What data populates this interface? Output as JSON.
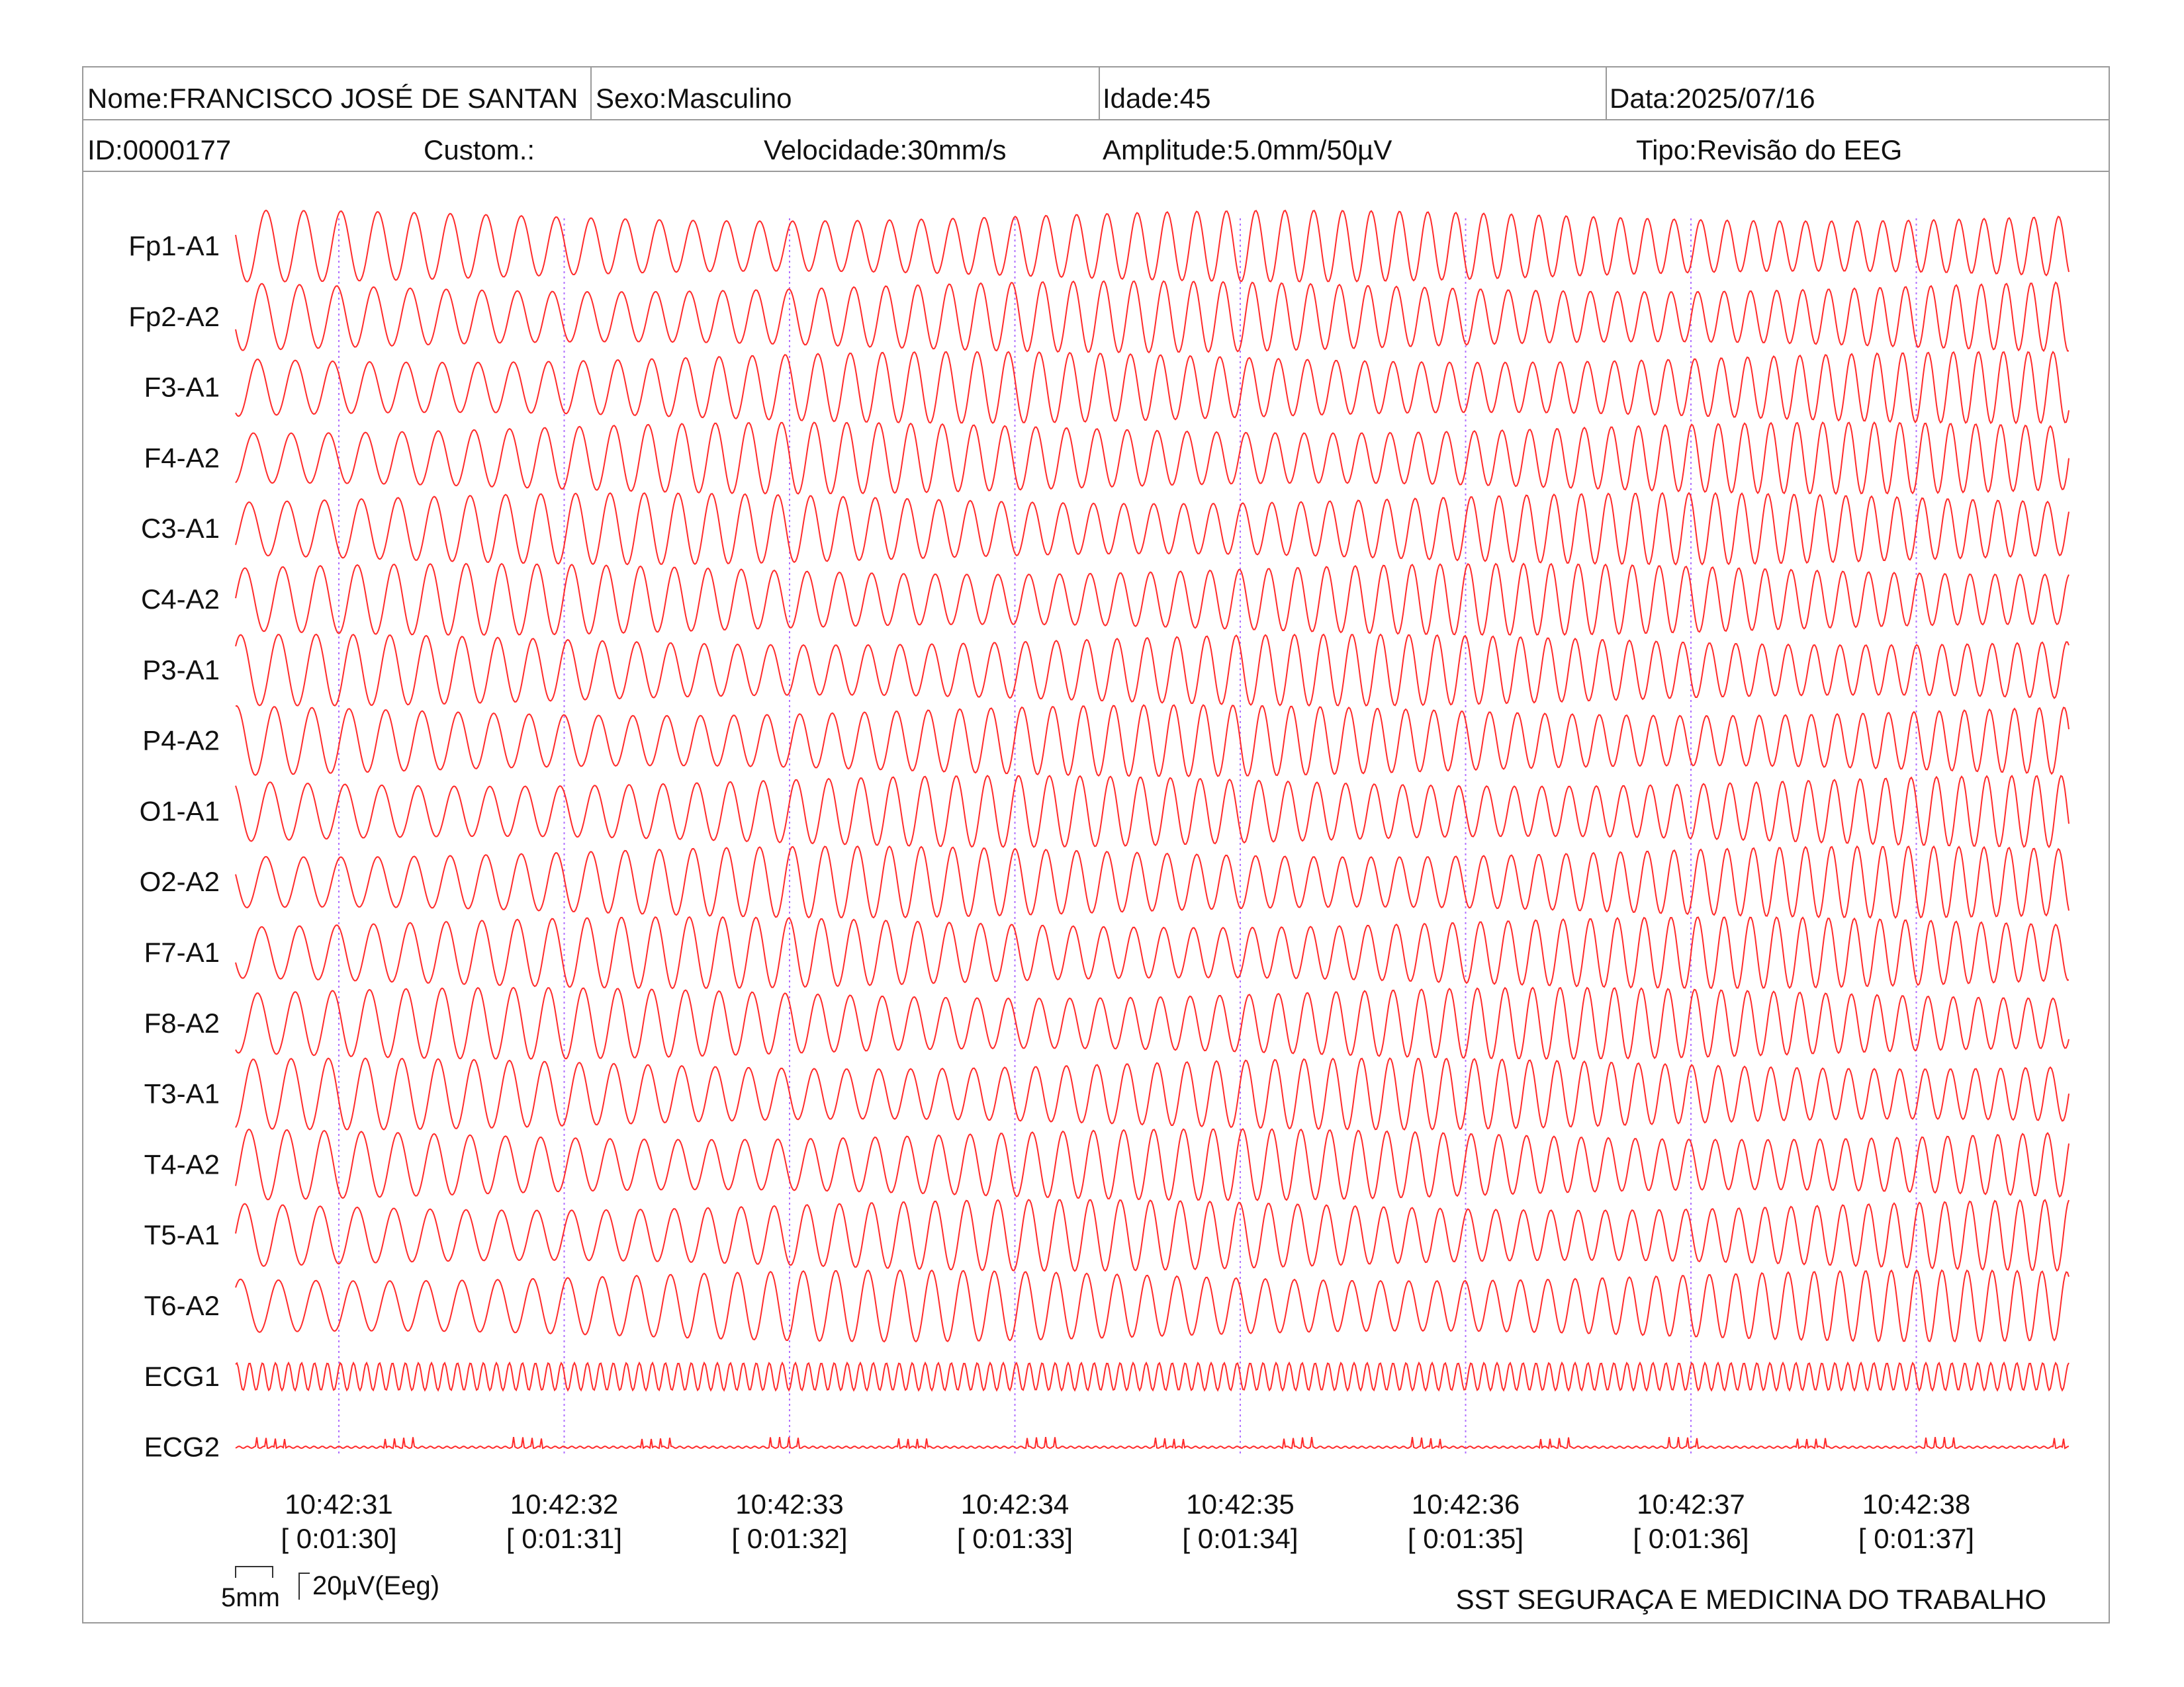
{
  "header": {
    "row1": [
      {
        "key": "name",
        "text": "Nome:FRANCISCO JOSÉ DE SANTAN"
      },
      {
        "key": "sex",
        "text": "Sexo:Masculino"
      },
      {
        "key": "age",
        "text": "Idade:45"
      },
      {
        "key": "date",
        "text": "Data:2025/07/16"
      }
    ],
    "row2": [
      {
        "key": "id",
        "text": "ID:0000177"
      },
      {
        "key": "custom",
        "text": "Custom.:"
      },
      {
        "key": "speed",
        "text": "Velocidade:30mm/s"
      },
      {
        "key": "amplitude",
        "text": "Amplitude:5.0mm/50µV"
      },
      {
        "key": "type",
        "text": "Tipo:Revisão do EEG"
      }
    ]
  },
  "scale_bar": {
    "time_label": "5mm",
    "amp_label": "20µV(Eeg)"
  },
  "footer": {
    "organization": "SST SEGURAÇA E MEDICINA DO TRABALHO"
  },
  "colors": {
    "trace": "#ff2a2a",
    "marker": "#b070ff",
    "border": "#9a9a9a",
    "text": "#111111"
  },
  "chart_data": {
    "type": "line",
    "title": "",
    "xlabel": "",
    "ylabel": "",
    "grid": false,
    "channels": [
      {
        "name": "Fp1-A1",
        "kind": "eeg",
        "relative_amplitude": 1.0
      },
      {
        "name": "Fp2-A2",
        "kind": "eeg",
        "relative_amplitude": 1.0
      },
      {
        "name": "F3-A1",
        "kind": "eeg",
        "relative_amplitude": 1.0
      },
      {
        "name": "F4-A2",
        "kind": "eeg",
        "relative_amplitude": 1.0
      },
      {
        "name": "C3-A1",
        "kind": "eeg",
        "relative_amplitude": 1.0
      },
      {
        "name": "C4-A2",
        "kind": "eeg",
        "relative_amplitude": 1.0
      },
      {
        "name": "P3-A1",
        "kind": "eeg",
        "relative_amplitude": 1.0
      },
      {
        "name": "P4-A2",
        "kind": "eeg",
        "relative_amplitude": 1.0
      },
      {
        "name": "O1-A1",
        "kind": "eeg",
        "relative_amplitude": 1.0
      },
      {
        "name": "O2-A2",
        "kind": "eeg",
        "relative_amplitude": 1.0
      },
      {
        "name": "F7-A1",
        "kind": "eeg",
        "relative_amplitude": 1.0
      },
      {
        "name": "F8-A2",
        "kind": "eeg",
        "relative_amplitude": 1.0
      },
      {
        "name": "T3-A1",
        "kind": "eeg",
        "relative_amplitude": 1.0
      },
      {
        "name": "T4-A2",
        "kind": "eeg",
        "relative_amplitude": 1.0
      },
      {
        "name": "T5-A1",
        "kind": "eeg",
        "relative_amplitude": 1.0
      },
      {
        "name": "T6-A2",
        "kind": "eeg",
        "relative_amplitude": 1.0
      },
      {
        "name": "ECG1",
        "kind": "ecg",
        "relative_amplitude": 0.12
      },
      {
        "name": "ECG2",
        "kind": "ecg2",
        "relative_amplitude": 0.05
      }
    ],
    "time_ticks": [
      {
        "clock": "10:42:31",
        "elapsed": "[ 0:01:30]"
      },
      {
        "clock": "10:42:32",
        "elapsed": "[ 0:01:31]"
      },
      {
        "clock": "10:42:33",
        "elapsed": "[ 0:01:32]"
      },
      {
        "clock": "10:42:34",
        "elapsed": "[ 0:01:33]"
      },
      {
        "clock": "10:42:35",
        "elapsed": "[ 0:01:34]"
      },
      {
        "clock": "10:42:36",
        "elapsed": "[ 0:01:35]"
      },
      {
        "clock": "10:42:37",
        "elapsed": "[ 0:01:36]"
      },
      {
        "clock": "10:42:38",
        "elapsed": "[ 0:01:37]"
      }
    ],
    "x_range_seconds": [
      0.6,
      8.7
    ],
    "first_tick_second": 1
  }
}
